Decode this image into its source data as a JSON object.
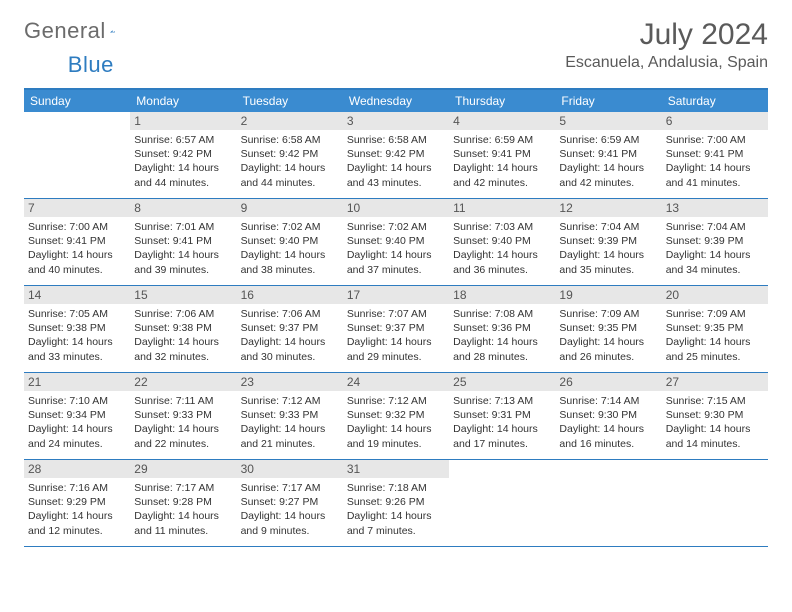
{
  "logo": {
    "text1": "General",
    "text2": "Blue"
  },
  "header": {
    "month_title": "July 2024",
    "location": "Escanuela, Andalusia, Spain"
  },
  "styling": {
    "accent_color": "#2e7cc0",
    "header_bg": "#3a8bd0",
    "header_text": "#ffffff",
    "daynum_bg": "#e7e7e7",
    "body_text": "#333333",
    "title_color": "#5a5a5a",
    "page_bg": "#ffffff",
    "font_family": "Arial",
    "title_fontsize": 30,
    "body_fontsize": 10.5,
    "columns": 7,
    "rows": 5
  },
  "weekdays": [
    "Sunday",
    "Monday",
    "Tuesday",
    "Wednesday",
    "Thursday",
    "Friday",
    "Saturday"
  ],
  "weeks": [
    [
      {
        "n": "",
        "sr": "",
        "ss": "",
        "dl": ""
      },
      {
        "n": "1",
        "sr": "Sunrise: 6:57 AM",
        "ss": "Sunset: 9:42 PM",
        "dl": "Daylight: 14 hours and 44 minutes."
      },
      {
        "n": "2",
        "sr": "Sunrise: 6:58 AM",
        "ss": "Sunset: 9:42 PM",
        "dl": "Daylight: 14 hours and 44 minutes."
      },
      {
        "n": "3",
        "sr": "Sunrise: 6:58 AM",
        "ss": "Sunset: 9:42 PM",
        "dl": "Daylight: 14 hours and 43 minutes."
      },
      {
        "n": "4",
        "sr": "Sunrise: 6:59 AM",
        "ss": "Sunset: 9:41 PM",
        "dl": "Daylight: 14 hours and 42 minutes."
      },
      {
        "n": "5",
        "sr": "Sunrise: 6:59 AM",
        "ss": "Sunset: 9:41 PM",
        "dl": "Daylight: 14 hours and 42 minutes."
      },
      {
        "n": "6",
        "sr": "Sunrise: 7:00 AM",
        "ss": "Sunset: 9:41 PM",
        "dl": "Daylight: 14 hours and 41 minutes."
      }
    ],
    [
      {
        "n": "7",
        "sr": "Sunrise: 7:00 AM",
        "ss": "Sunset: 9:41 PM",
        "dl": "Daylight: 14 hours and 40 minutes."
      },
      {
        "n": "8",
        "sr": "Sunrise: 7:01 AM",
        "ss": "Sunset: 9:41 PM",
        "dl": "Daylight: 14 hours and 39 minutes."
      },
      {
        "n": "9",
        "sr": "Sunrise: 7:02 AM",
        "ss": "Sunset: 9:40 PM",
        "dl": "Daylight: 14 hours and 38 minutes."
      },
      {
        "n": "10",
        "sr": "Sunrise: 7:02 AM",
        "ss": "Sunset: 9:40 PM",
        "dl": "Daylight: 14 hours and 37 minutes."
      },
      {
        "n": "11",
        "sr": "Sunrise: 7:03 AM",
        "ss": "Sunset: 9:40 PM",
        "dl": "Daylight: 14 hours and 36 minutes."
      },
      {
        "n": "12",
        "sr": "Sunrise: 7:04 AM",
        "ss": "Sunset: 9:39 PM",
        "dl": "Daylight: 14 hours and 35 minutes."
      },
      {
        "n": "13",
        "sr": "Sunrise: 7:04 AM",
        "ss": "Sunset: 9:39 PM",
        "dl": "Daylight: 14 hours and 34 minutes."
      }
    ],
    [
      {
        "n": "14",
        "sr": "Sunrise: 7:05 AM",
        "ss": "Sunset: 9:38 PM",
        "dl": "Daylight: 14 hours and 33 minutes."
      },
      {
        "n": "15",
        "sr": "Sunrise: 7:06 AM",
        "ss": "Sunset: 9:38 PM",
        "dl": "Daylight: 14 hours and 32 minutes."
      },
      {
        "n": "16",
        "sr": "Sunrise: 7:06 AM",
        "ss": "Sunset: 9:37 PM",
        "dl": "Daylight: 14 hours and 30 minutes."
      },
      {
        "n": "17",
        "sr": "Sunrise: 7:07 AM",
        "ss": "Sunset: 9:37 PM",
        "dl": "Daylight: 14 hours and 29 minutes."
      },
      {
        "n": "18",
        "sr": "Sunrise: 7:08 AM",
        "ss": "Sunset: 9:36 PM",
        "dl": "Daylight: 14 hours and 28 minutes."
      },
      {
        "n": "19",
        "sr": "Sunrise: 7:09 AM",
        "ss": "Sunset: 9:35 PM",
        "dl": "Daylight: 14 hours and 26 minutes."
      },
      {
        "n": "20",
        "sr": "Sunrise: 7:09 AM",
        "ss": "Sunset: 9:35 PM",
        "dl": "Daylight: 14 hours and 25 minutes."
      }
    ],
    [
      {
        "n": "21",
        "sr": "Sunrise: 7:10 AM",
        "ss": "Sunset: 9:34 PM",
        "dl": "Daylight: 14 hours and 24 minutes."
      },
      {
        "n": "22",
        "sr": "Sunrise: 7:11 AM",
        "ss": "Sunset: 9:33 PM",
        "dl": "Daylight: 14 hours and 22 minutes."
      },
      {
        "n": "23",
        "sr": "Sunrise: 7:12 AM",
        "ss": "Sunset: 9:33 PM",
        "dl": "Daylight: 14 hours and 21 minutes."
      },
      {
        "n": "24",
        "sr": "Sunrise: 7:12 AM",
        "ss": "Sunset: 9:32 PM",
        "dl": "Daylight: 14 hours and 19 minutes."
      },
      {
        "n": "25",
        "sr": "Sunrise: 7:13 AM",
        "ss": "Sunset: 9:31 PM",
        "dl": "Daylight: 14 hours and 17 minutes."
      },
      {
        "n": "26",
        "sr": "Sunrise: 7:14 AM",
        "ss": "Sunset: 9:30 PM",
        "dl": "Daylight: 14 hours and 16 minutes."
      },
      {
        "n": "27",
        "sr": "Sunrise: 7:15 AM",
        "ss": "Sunset: 9:30 PM",
        "dl": "Daylight: 14 hours and 14 minutes."
      }
    ],
    [
      {
        "n": "28",
        "sr": "Sunrise: 7:16 AM",
        "ss": "Sunset: 9:29 PM",
        "dl": "Daylight: 14 hours and 12 minutes."
      },
      {
        "n": "29",
        "sr": "Sunrise: 7:17 AM",
        "ss": "Sunset: 9:28 PM",
        "dl": "Daylight: 14 hours and 11 minutes."
      },
      {
        "n": "30",
        "sr": "Sunrise: 7:17 AM",
        "ss": "Sunset: 9:27 PM",
        "dl": "Daylight: 14 hours and 9 minutes."
      },
      {
        "n": "31",
        "sr": "Sunrise: 7:18 AM",
        "ss": "Sunset: 9:26 PM",
        "dl": "Daylight: 14 hours and 7 minutes."
      },
      {
        "n": "",
        "sr": "",
        "ss": "",
        "dl": ""
      },
      {
        "n": "",
        "sr": "",
        "ss": "",
        "dl": ""
      },
      {
        "n": "",
        "sr": "",
        "ss": "",
        "dl": ""
      }
    ]
  ]
}
